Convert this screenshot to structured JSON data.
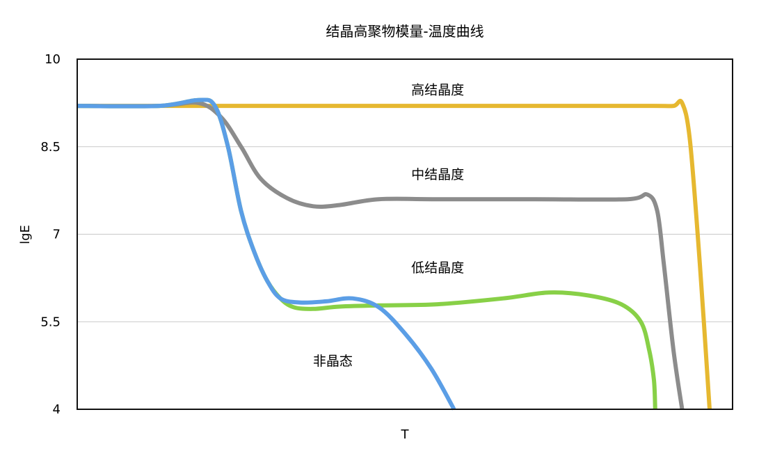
{
  "chart_data": {
    "type": "line",
    "title": "结晶高聚物模量-温度曲线",
    "xlabel": "T",
    "ylabel": "lgE",
    "ylim": [
      4,
      10
    ],
    "yticks": [
      "10",
      "8.5",
      "7",
      "5.5",
      "4"
    ],
    "grid": "horizontal",
    "x_note": "x axis has no tick labels; x values are relative position along T (0 to 100)",
    "series": [
      {
        "color": "#E6B830",
        "x": [
          0,
          12.5,
          20,
          35,
          55,
          75,
          88,
          91,
          92.3,
          93.5,
          95,
          96.5
        ],
        "y": [
          9.2,
          9.2,
          9.2,
          9.2,
          9.2,
          9.2,
          9.2,
          9.2,
          9.25,
          8.6,
          6.5,
          4.0
        ]
      },
      {
        "color": "#8C8C8C",
        "x": [
          0,
          12.5,
          18.5,
          22,
          25,
          28,
          32,
          36,
          40,
          46,
          55,
          70,
          84,
          87,
          88.5,
          89.5,
          91,
          92.3
        ],
        "y": [
          9.2,
          9.2,
          9.25,
          9.0,
          8.5,
          7.95,
          7.62,
          7.48,
          7.5,
          7.6,
          7.6,
          7.6,
          7.6,
          7.68,
          7.4,
          6.5,
          5.0,
          4.0
        ]
      },
      {
        "color": "#88D047",
        "x": [
          0,
          12.5,
          18.5,
          21,
          23,
          25,
          27,
          29,
          31,
          33,
          36,
          40,
          46,
          55,
          65,
          72,
          78,
          83,
          86,
          87.3,
          88,
          88.2
        ],
        "y": [
          9.2,
          9.2,
          9.3,
          9.2,
          8.5,
          7.4,
          6.7,
          6.2,
          5.9,
          5.75,
          5.72,
          5.76,
          5.78,
          5.8,
          5.9,
          6.0,
          5.95,
          5.8,
          5.5,
          5.0,
          4.5,
          4.0
        ]
      },
      {
        "color": "#5B9EE6",
        "x": [
          0,
          12.5,
          18.5,
          21,
          23,
          25,
          27,
          29,
          31,
          34,
          38,
          42,
          46,
          50,
          54,
          57.5
        ],
        "y": [
          9.2,
          9.2,
          9.3,
          9.2,
          8.5,
          7.4,
          6.7,
          6.2,
          5.9,
          5.83,
          5.85,
          5.9,
          5.75,
          5.3,
          4.7,
          4.0
        ]
      }
    ],
    "annotations": [
      {
        "text": "高结晶度",
        "x": 55,
        "y": 9.4
      },
      {
        "text": "中结晶度",
        "x": 55,
        "y": 7.95
      },
      {
        "text": "低结晶度",
        "x": 55,
        "y": 6.35
      },
      {
        "text": "非晶态",
        "x": 39,
        "y": 4.75
      }
    ]
  }
}
